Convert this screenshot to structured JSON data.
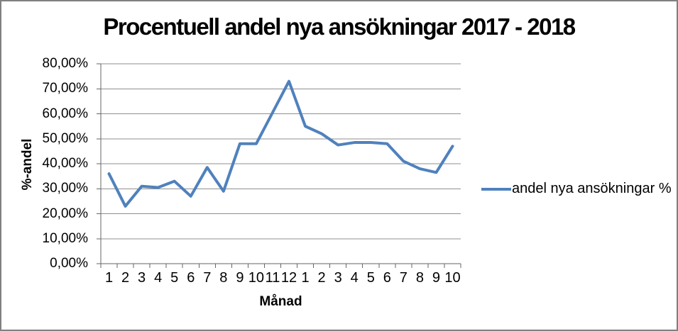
{
  "frame": {
    "background": "#FFFFFF",
    "border_color": "#808080"
  },
  "chart_data": {
    "type": "line",
    "title": "Procentuell andel nya ansökningar 2017 - 2018",
    "xlabel": "Månad",
    "ylabel": "%-andel",
    "categories": [
      "1",
      "2",
      "3",
      "4",
      "5",
      "6",
      "7",
      "8",
      "9",
      "10",
      "11",
      "12",
      "1",
      "2",
      "3",
      "4",
      "5",
      "6",
      "7",
      "8",
      "9",
      "10"
    ],
    "series": [
      {
        "name": "andel nya ansökningar %",
        "color": "#4F81BD",
        "values": [
          36,
          23,
          31,
          30.5,
          33,
          27,
          38.5,
          29,
          48,
          48,
          60.5,
          73,
          55,
          52,
          47.5,
          48.5,
          48.5,
          48,
          41,
          38,
          36.5,
          47
        ]
      }
    ],
    "ylim": [
      0,
      80
    ],
    "ytick_labels": [
      "80,00%",
      "70,00%",
      "60,00%",
      "50,00%",
      "40,00%",
      "30,00%",
      "20,00%",
      "10,00%",
      "0,00%"
    ],
    "grid": "horizontal-major",
    "legend_position": "right",
    "axis_color": "#666666",
    "gridline_color": "#8F8F8F"
  }
}
